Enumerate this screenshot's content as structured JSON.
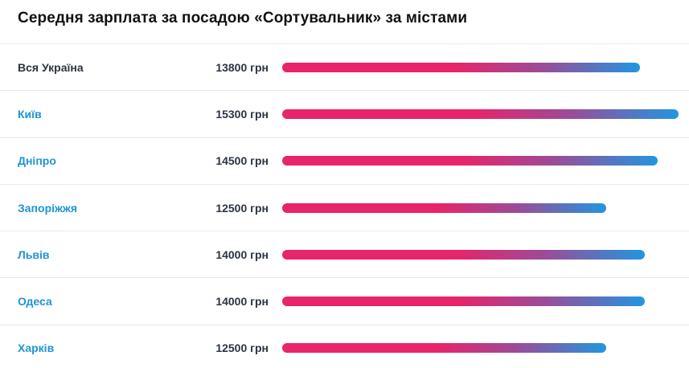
{
  "chart_data": {
    "type": "bar",
    "title": "Середня зарплата за посадою «Сортувальник» за містами",
    "unit": "грн",
    "categories": [
      "Вся Україна",
      "Київ",
      "Дніпро",
      "Запоріжжя",
      "Львів",
      "Одеса",
      "Харків"
    ],
    "values": [
      13800,
      15300,
      14500,
      12500,
      14000,
      14000,
      12500
    ],
    "value_labels": [
      "13800 грн",
      "15300 грн",
      "14500 грн",
      "12500 грн",
      "14000 грн",
      "14000 грн",
      "12500 грн"
    ],
    "linked": [
      false,
      true,
      true,
      true,
      true,
      true,
      true
    ],
    "orientation": "horizontal",
    "xlim": [
      0,
      15300
    ]
  },
  "colors": {
    "bar_start": "#e8246a",
    "bar_end": "#2196e0",
    "link": "#1e95d4",
    "text": "#2b3442"
  }
}
